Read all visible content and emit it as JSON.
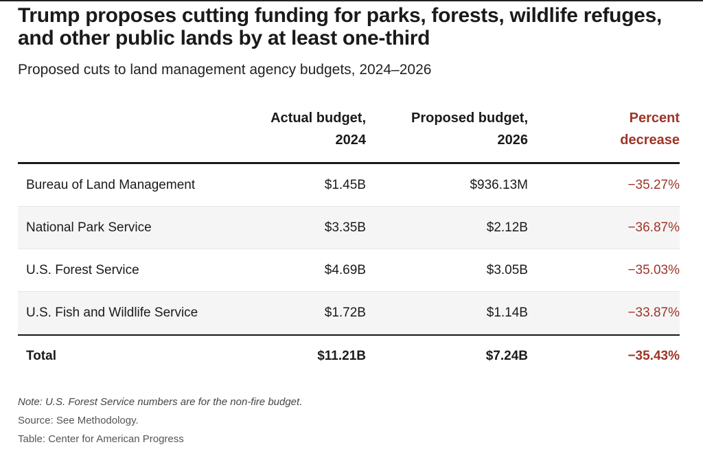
{
  "title": "Trump proposes cutting funding for parks, forests, wildlife refuges, and other public lands by at least one-third",
  "subtitle": "Proposed cuts to land management agency budgets, 2024–2026",
  "colors": {
    "accent_red": "#9e3426",
    "alt_row": "#f5f5f5"
  },
  "chart_data": {
    "type": "table",
    "columns": [
      "",
      "Actual budget,\n2024",
      "Proposed budget,\n2026",
      "Percent\ndecrease"
    ],
    "rows": [
      [
        "Bureau of Land Management",
        "$1.45B",
        "$936.13M",
        "−35.27%"
      ],
      [
        "National Park Service",
        "$3.35B",
        "$2.12B",
        "−36.87%"
      ],
      [
        "U.S. Forest Service",
        "$4.69B",
        "$3.05B",
        "−35.03%"
      ],
      [
        "U.S. Fish and Wildlife Service",
        "$1.72B",
        "$1.14B",
        "−33.87%"
      ]
    ],
    "total": [
      "Total",
      "$11.21B",
      "$7.24B",
      "−35.43%"
    ]
  },
  "notes": {
    "note": "Note: U.S. Forest Service numbers are for the non-fire budget.",
    "source": "Source: See Methodology.",
    "credit": "Table: Center for American Progress"
  }
}
